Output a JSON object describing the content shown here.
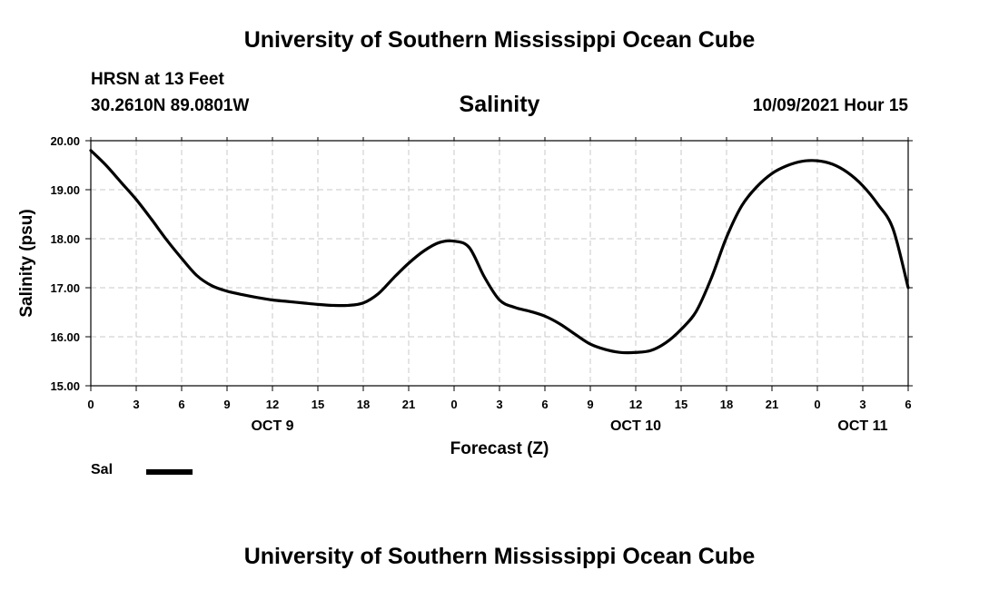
{
  "header": {
    "title_top": "University of Southern Mississippi Ocean Cube",
    "station": "HRSN at 13 Feet",
    "coords": "30.2610N  89.0801W",
    "chart_title": "Salinity",
    "datetime": "10/09/2021 Hour 15"
  },
  "footer": {
    "title_bottom": "University of Southern Mississippi Ocean Cube"
  },
  "legend": {
    "label": "Sal",
    "color": "#000000"
  },
  "chart_data": {
    "type": "line",
    "title": "Salinity",
    "xlabel": "Forecast (Z)",
    "ylabel": "Salinity (psu)",
    "xlim": [
      0,
      54
    ],
    "ylim": [
      15.0,
      20.0
    ],
    "grid": true,
    "legend_position": "bottom-left",
    "x_ticks": [
      0,
      3,
      6,
      9,
      12,
      15,
      18,
      21,
      24,
      27,
      30,
      33,
      36,
      39,
      42,
      45,
      48,
      51,
      54
    ],
    "x_tick_labels": [
      "0",
      "3",
      "6",
      "9",
      "12",
      "15",
      "18",
      "21",
      "0",
      "3",
      "6",
      "9",
      "12",
      "15",
      "18",
      "21",
      "0",
      "3",
      "6"
    ],
    "y_ticks": [
      15.0,
      16.0,
      17.0,
      18.0,
      19.0,
      20.0
    ],
    "y_tick_labels": [
      "15.00",
      "16.00",
      "17.00",
      "18.00",
      "19.00",
      "20.00"
    ],
    "day_labels": [
      {
        "text": "OCT 9",
        "x": 12
      },
      {
        "text": "OCT 10",
        "x": 36
      },
      {
        "text": "OCT 11",
        "x": 51
      }
    ],
    "series": [
      {
        "name": "Sal",
        "color": "#000000",
        "x": [
          0,
          1,
          2,
          3,
          4,
          5,
          6,
          7,
          8,
          9,
          10,
          11,
          12,
          13,
          14,
          15,
          16,
          17,
          18,
          19,
          20,
          21,
          22,
          23,
          24,
          25,
          26,
          27,
          28,
          29,
          30,
          31,
          32,
          33,
          34,
          35,
          36,
          37,
          38,
          39,
          40,
          41,
          42,
          43,
          44,
          45,
          46,
          47,
          48,
          49,
          50,
          51,
          52,
          53,
          54
        ],
        "values": [
          19.8,
          19.5,
          19.15,
          18.8,
          18.4,
          17.98,
          17.6,
          17.25,
          17.04,
          16.93,
          16.86,
          16.8,
          16.75,
          16.72,
          16.69,
          16.66,
          16.64,
          16.64,
          16.69,
          16.88,
          17.2,
          17.5,
          17.75,
          17.92,
          17.95,
          17.82,
          17.22,
          16.75,
          16.6,
          16.52,
          16.42,
          16.26,
          16.05,
          15.85,
          15.74,
          15.68,
          15.68,
          15.72,
          15.88,
          16.15,
          16.52,
          17.2,
          18.03,
          18.67,
          19.06,
          19.33,
          19.49,
          19.58,
          19.59,
          19.52,
          19.35,
          19.08,
          18.7,
          18.2,
          17.0
        ]
      }
    ]
  }
}
